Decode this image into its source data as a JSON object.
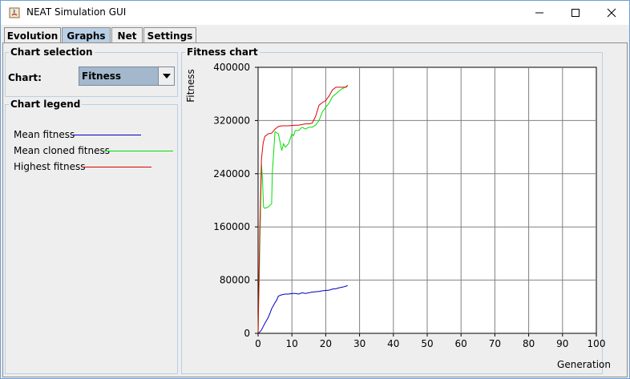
{
  "window": {
    "title": "NEAT Simulation GUI",
    "controls": {
      "minimize": "minimize-icon",
      "maximize": "maximize-icon",
      "close": "close-icon"
    }
  },
  "tabs": [
    {
      "label": "Evolution",
      "active": false
    },
    {
      "label": "Graphs",
      "active": true
    },
    {
      "label": "Net",
      "active": false
    },
    {
      "label": "Settings",
      "active": false
    }
  ],
  "chart_selection": {
    "title": "Chart selection",
    "label": "Chart:",
    "selected": "Fitness"
  },
  "chart_legend": {
    "title": "Chart legend",
    "entries": [
      {
        "label": "Mean fitness",
        "color": "#0000c0"
      },
      {
        "label": "Mean cloned fitness",
        "color": "#00e000"
      },
      {
        "label": "Highest fitness",
        "color": "#e00000"
      }
    ]
  },
  "chart_panel": {
    "title": "Fitness chart"
  },
  "chart_data": {
    "type": "line",
    "title": "Fitness chart",
    "xlabel": "Generation",
    "ylabel": "Fitness",
    "xlim": [
      0,
      100
    ],
    "ylim": [
      0,
      400000
    ],
    "x_ticks": [
      "0",
      "10",
      "20",
      "30",
      "40",
      "50",
      "60",
      "70",
      "80",
      "90",
      "100"
    ],
    "y_ticks": [
      "0",
      "80000",
      "160000",
      "240000",
      "320000",
      "400000"
    ],
    "grid": true,
    "series": [
      {
        "name": "Mean fitness",
        "color": "#0000c0",
        "x": [
          0,
          0.5,
          1,
          1.5,
          2,
          3,
          3.5,
          4,
          5,
          5.5,
          6,
          7,
          8,
          9,
          10,
          11,
          12,
          13,
          14,
          15,
          16,
          17,
          18,
          19,
          20,
          21,
          22,
          23,
          24,
          25,
          26,
          26.5
        ],
        "y": [
          0,
          2000,
          5000,
          10000,
          15000,
          24000,
          30000,
          37000,
          46000,
          50000,
          56000,
          58000,
          59000,
          59000,
          60000,
          60000,
          59000,
          61000,
          60000,
          61000,
          62000,
          62500,
          63000,
          64000,
          64500,
          65000,
          66500,
          67000,
          68500,
          69500,
          71000,
          72000
        ]
      },
      {
        "name": "Mean cloned fitness",
        "color": "#00e000",
        "x": [
          0,
          0.5,
          1,
          1.3,
          1.6,
          2,
          3,
          4,
          4.2,
          5,
          6,
          7,
          7.5,
          8,
          9,
          10,
          10.5,
          11,
          12,
          13,
          14,
          15,
          16,
          17,
          18,
          19,
          20,
          21,
          22,
          23,
          24,
          25,
          26,
          26.5
        ],
        "y": [
          0,
          130000,
          255000,
          230000,
          190000,
          188000,
          190000,
          195000,
          240000,
          303000,
          300000,
          275000,
          285000,
          280000,
          285000,
          300000,
          297000,
          305000,
          305000,
          310000,
          307000,
          310000,
          310000,
          313000,
          320000,
          333000,
          340000,
          346000,
          356000,
          360000,
          365000,
          368000,
          371000,
          373000
        ]
      },
      {
        "name": "Highest fitness",
        "color": "#e00000",
        "x": [
          0,
          0.5,
          1,
          1.5,
          2,
          3,
          4,
          5,
          6,
          7,
          8,
          9,
          10,
          11,
          12,
          13,
          14,
          15,
          16,
          17,
          18,
          19,
          20,
          21,
          22,
          23,
          24,
          25,
          26,
          26.5
        ],
        "y": [
          0,
          155000,
          262000,
          286000,
          296000,
          300000,
          301000,
          307000,
          311000,
          312000,
          312000,
          312000,
          312500,
          313000,
          313000,
          314000,
          315000,
          315000,
          316000,
          326000,
          343000,
          347000,
          350000,
          357000,
          366000,
          370000,
          370000,
          370000,
          370000,
          373000
        ]
      }
    ]
  }
}
